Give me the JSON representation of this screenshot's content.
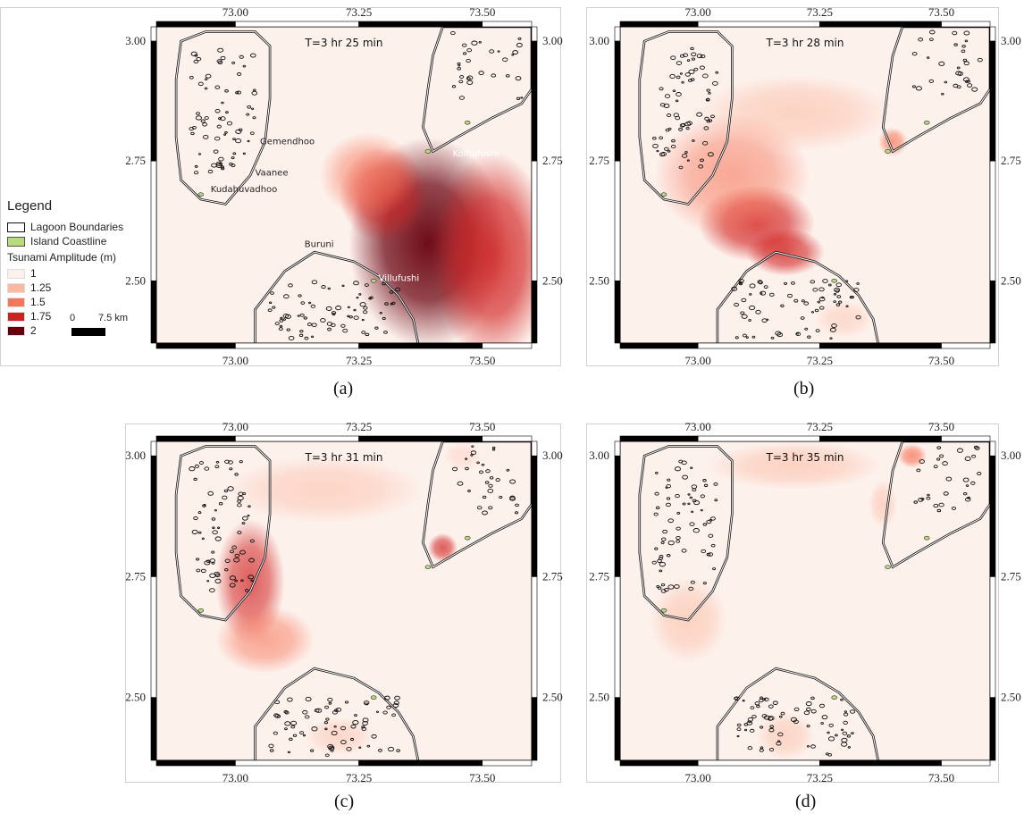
{
  "legend": {
    "title": "Legend",
    "lagoon_label": "Lagoon Boundaries",
    "coast_label": "Island Coastline",
    "amplitude_title": "Tsunami Amplitude (m)",
    "classes": [
      {
        "label": "1",
        "color": "#fdf1ec"
      },
      {
        "label": "1.25",
        "color": "#fbb9a0"
      },
      {
        "label": "1.5",
        "color": "#f6765a"
      },
      {
        "label": "1.75",
        "color": "#d0201f"
      },
      {
        "label": "2",
        "color": "#67000d"
      }
    ],
    "lagoon_color": "#ffffff",
    "coast_color": "#b8db7c",
    "scale_start": "0",
    "scale_end": "7.5 km"
  },
  "axes": {
    "x_ticks": [
      "73.00",
      "73.25",
      "73.50"
    ],
    "y_ticks": [
      "3.00",
      "2.75",
      "2.50"
    ],
    "x_range": [
      72.84,
      73.6
    ],
    "y_range": [
      2.37,
      3.03
    ]
  },
  "place_labels": [
    {
      "name": "Gemendhoo",
      "lon": 73.05,
      "lat": 2.785
    },
    {
      "name": "Vaanee",
      "lon": 73.04,
      "lat": 2.72
    },
    {
      "name": "Kudahuvadhoo",
      "lon": 72.95,
      "lat": 2.685
    },
    {
      "name": "Buruni",
      "lon": 73.14,
      "lat": 2.57
    },
    {
      "name": "Villufushi",
      "lon": 73.29,
      "lat": 2.5
    },
    {
      "name": "Kolhufushi",
      "lon": 73.44,
      "lat": 2.76
    }
  ],
  "panels": [
    {
      "id": "a",
      "caption": "(a)",
      "time": "T=3 hr 25 min",
      "wave": [
        {
          "lon": 73.39,
          "lat": 2.58,
          "rx": 0.16,
          "ry": 0.22,
          "level": 5,
          "opacity": 0.95
        },
        {
          "lon": 73.52,
          "lat": 2.55,
          "rx": 0.12,
          "ry": 0.22,
          "level": 4,
          "opacity": 0.85
        },
        {
          "lon": 73.3,
          "lat": 2.68,
          "rx": 0.09,
          "ry": 0.1,
          "level": 4,
          "opacity": 0.7
        },
        {
          "lon": 73.27,
          "lat": 2.72,
          "rx": 0.1,
          "ry": 0.09,
          "level": 3,
          "opacity": 0.6
        }
      ],
      "show_labels": true
    },
    {
      "id": "b",
      "caption": "(b)",
      "time": "T=3 hr 28 min",
      "wave": [
        {
          "lon": 73.12,
          "lat": 2.62,
          "rx": 0.12,
          "ry": 0.08,
          "level": 4,
          "opacity": 0.8
        },
        {
          "lon": 73.18,
          "lat": 2.56,
          "rx": 0.08,
          "ry": 0.05,
          "level": 4,
          "opacity": 0.75
        },
        {
          "lon": 73.07,
          "lat": 2.72,
          "rx": 0.16,
          "ry": 0.13,
          "level": 3,
          "opacity": 0.6
        },
        {
          "lon": 73.2,
          "lat": 2.85,
          "rx": 0.2,
          "ry": 0.08,
          "level": 2,
          "opacity": 0.55
        },
        {
          "lon": 73.4,
          "lat": 2.79,
          "rx": 0.03,
          "ry": 0.03,
          "level": 3,
          "opacity": 0.7
        },
        {
          "lon": 73.3,
          "lat": 2.42,
          "rx": 0.06,
          "ry": 0.04,
          "level": 2,
          "opacity": 0.4
        }
      ],
      "show_labels": false
    },
    {
      "id": "c",
      "caption": "(c)",
      "time": "T=3 hr 31 min",
      "wave": [
        {
          "lon": 73.03,
          "lat": 2.74,
          "rx": 0.07,
          "ry": 0.13,
          "level": 4,
          "opacity": 0.7
        },
        {
          "lon": 73.06,
          "lat": 2.62,
          "rx": 0.1,
          "ry": 0.07,
          "level": 3,
          "opacity": 0.6
        },
        {
          "lon": 73.18,
          "lat": 2.93,
          "rx": 0.2,
          "ry": 0.07,
          "level": 2,
          "opacity": 0.5
        },
        {
          "lon": 73.42,
          "lat": 2.81,
          "rx": 0.03,
          "ry": 0.03,
          "level": 4,
          "opacity": 0.7
        },
        {
          "lon": 73.21,
          "lat": 2.42,
          "rx": 0.07,
          "ry": 0.04,
          "level": 2,
          "opacity": 0.45
        },
        {
          "lon": 73.46,
          "lat": 3.0,
          "rx": 0.04,
          "ry": 0.03,
          "level": 2,
          "opacity": 0.3
        }
      ],
      "show_labels": false
    },
    {
      "id": "d",
      "caption": "(d)",
      "time": "T=3 hr 35 min",
      "wave": [
        {
          "lon": 73.2,
          "lat": 2.98,
          "rx": 0.18,
          "ry": 0.05,
          "level": 2,
          "opacity": 0.55
        },
        {
          "lon": 72.98,
          "lat": 2.66,
          "rx": 0.08,
          "ry": 0.09,
          "level": 2,
          "opacity": 0.55
        },
        {
          "lon": 73.44,
          "lat": 3.0,
          "rx": 0.03,
          "ry": 0.025,
          "level": 3,
          "opacity": 0.75
        },
        {
          "lon": 73.38,
          "lat": 2.9,
          "rx": 0.03,
          "ry": 0.05,
          "level": 2,
          "opacity": 0.5
        },
        {
          "lon": 73.18,
          "lat": 2.42,
          "rx": 0.06,
          "ry": 0.05,
          "level": 2,
          "opacity": 0.5
        }
      ],
      "show_labels": false
    }
  ]
}
